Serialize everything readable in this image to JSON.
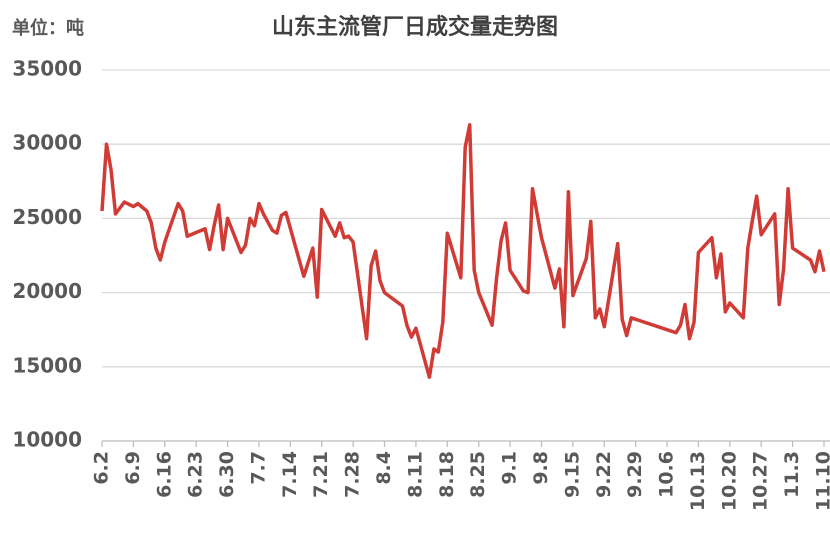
{
  "chart_data": {
    "type": "line",
    "title": "山东主流管厂日成交量走势图",
    "unit_label": "单位：吨",
    "x": [
      "6.2",
      "6.3",
      "6.4",
      "6.5",
      "6.6",
      "6.7",
      "6.9",
      "6.10",
      "6.12",
      "6.13",
      "6.14",
      "6.15",
      "6.16",
      "6.19",
      "6.20",
      "6.21",
      "6.25",
      "6.26",
      "6.27",
      "6.28",
      "6.29",
      "6.30",
      "7.3",
      "7.4",
      "7.5",
      "7.6",
      "7.7",
      "7.8",
      "7.10",
      "7.11",
      "7.12",
      "7.13",
      "7.17",
      "7.19",
      "7.20",
      "7.21",
      "7.24",
      "7.25",
      "7.26",
      "7.27",
      "7.28",
      "7.31",
      "8.1",
      "8.2",
      "8.3",
      "8.4",
      "8.8",
      "8.9",
      "8.10",
      "8.11",
      "8.14",
      "8.15",
      "8.16",
      "8.17",
      "8.18",
      "8.21",
      "8.22",
      "8.23",
      "8.24",
      "8.25",
      "8.28",
      "8.29",
      "8.30",
      "8.31",
      "9.1",
      "9.4",
      "9.5",
      "9.6",
      "9.8",
      "9.11",
      "9.12",
      "9.13",
      "9.14",
      "9.15",
      "9.18",
      "9.19",
      "9.20",
      "9.21",
      "9.22",
      "9.25",
      "9.26",
      "9.27",
      "9.28",
      "10.8",
      "10.9",
      "10.10",
      "10.11",
      "10.12",
      "10.13",
      "10.16",
      "10.17",
      "10.18",
      "10.19",
      "10.20",
      "10.23",
      "10.24",
      "10.25",
      "10.26",
      "10.27",
      "10.30",
      "10.31",
      "11.1",
      "11.2",
      "11.3",
      "11.7",
      "11.8",
      "11.9",
      "11.10"
    ],
    "series": [
      {
        "name": "日成交量",
        "color": "#d13b36",
        "values": [
          25500,
          30000,
          28300,
          25300,
          25700,
          26100,
          25800,
          26000,
          25500,
          24700,
          23000,
          22200,
          23400,
          26000,
          25500,
          23800,
          24300,
          22900,
          24500,
          25900,
          22900,
          25000,
          22700,
          23200,
          25000,
          24500,
          26000,
          25300,
          24200,
          24000,
          25200,
          25400,
          21100,
          23000,
          19700,
          25600,
          23800,
          24700,
          23700,
          23800,
          23400,
          16900,
          21800,
          22800,
          20800,
          20000,
          19100,
          17800,
          17000,
          17600,
          14300,
          16200,
          16000,
          18000,
          24000,
          21000,
          29800,
          31300,
          21500,
          20000,
          17800,
          21000,
          23500,
          24700,
          21500,
          20100,
          20000,
          27000,
          23700,
          20300,
          21600,
          17700,
          26800,
          19800,
          22300,
          24800,
          18300,
          18900,
          17700,
          23300,
          18200,
          17100,
          18300,
          17300,
          17800,
          19200,
          16900,
          18000,
          22700,
          23700,
          21000,
          22600,
          18700,
          19300,
          18300,
          23000,
          24800,
          26500,
          23900,
          25300,
          19200,
          21600,
          27000,
          23000,
          22200,
          21400,
          22800,
          21400
        ]
      }
    ],
    "xlim": [
      "6.2",
      "11.10"
    ],
    "xticks": [
      "6.2",
      "6.9",
      "6.16",
      "6.23",
      "6.30",
      "7.7",
      "7.14",
      "7.21",
      "7.28",
      "8.4",
      "8.11",
      "8.18",
      "8.25",
      "9.1",
      "9.8",
      "9.15",
      "9.22",
      "9.29",
      "10.6",
      "10.13",
      "10.20",
      "10.27",
      "11.3",
      "11.10"
    ],
    "ylim": [
      10000,
      35000
    ],
    "yticks": [
      10000,
      15000,
      20000,
      25000,
      30000,
      35000
    ],
    "grid": true
  }
}
